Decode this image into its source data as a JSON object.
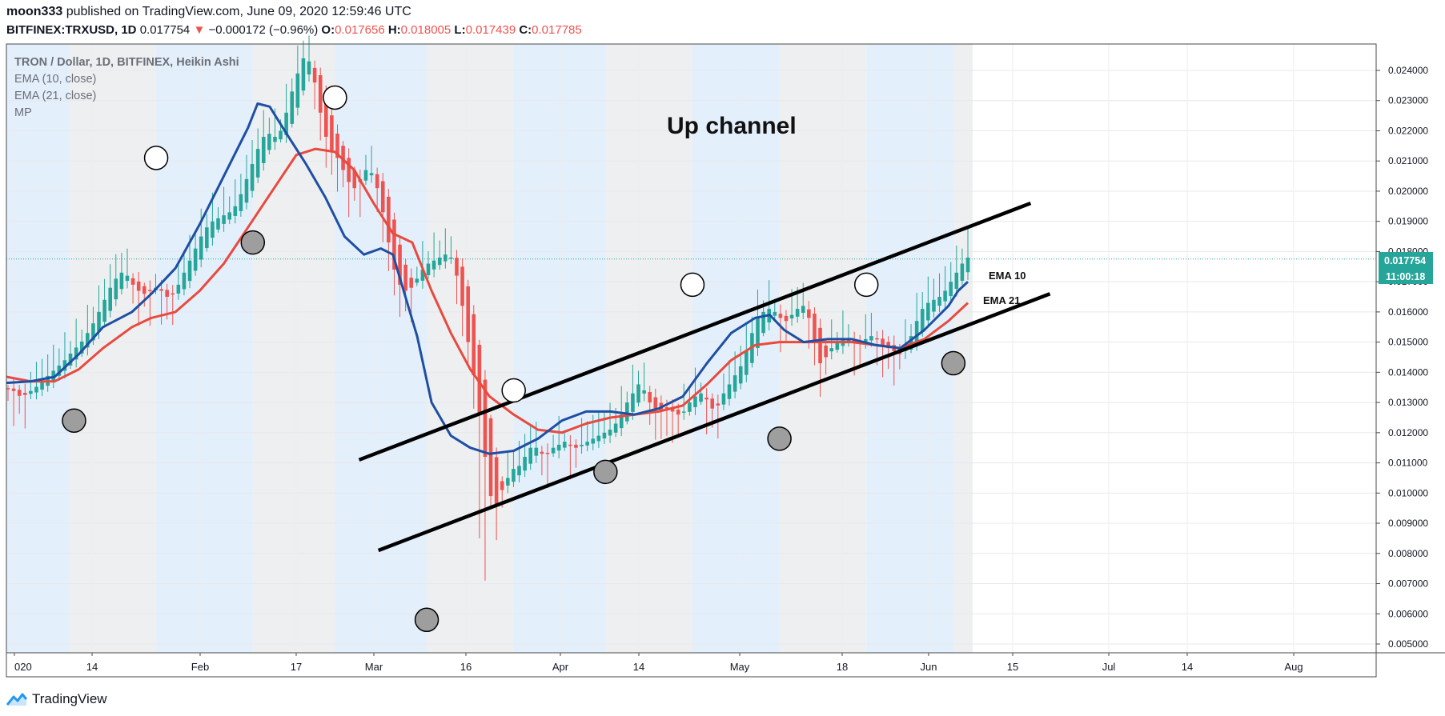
{
  "header": {
    "author": "moon333",
    "published_text": "published on TradingView.com, June 09, 2020 12:59:46 UTC",
    "symbol": "BITFINEX:TRXUSD, 1D",
    "last": "0.017754",
    "arrow": "▼",
    "change": "−0.000172 (−0.96%)",
    "o_label": "O:",
    "o_value": "0.017656",
    "h_label": "H:",
    "h_value": "0.018005",
    "l_label": "L:",
    "l_value": "0.017439",
    "c_label": "C:",
    "c_value": "0.017785"
  },
  "legend": {
    "title": "TRON / Dollar, 1D, BITFINEX, Heikin Ashi",
    "ema10": "EMA (10, close)",
    "ema21": "EMA (21, close)",
    "mp": "MP"
  },
  "annotations": {
    "channel_title": "Up channel",
    "ema10_label": "EMA 10",
    "ema21_label": "EMA 21"
  },
  "price_tag": {
    "value": "0.017754",
    "countdown": "11:00:18"
  },
  "brand": {
    "name": "TradingView"
  },
  "colors": {
    "up": "#26a69a",
    "down": "#ef5350",
    "ema10": "#1e4fa3",
    "ema21": "#e84a3f",
    "shade_blue": "#e3effb",
    "shade_gray": "#eeeff0",
    "accent": "#2196f3"
  },
  "chart_data": {
    "type": "candlestick",
    "style": "Heikin Ashi",
    "yticks": [
      "0.024000",
      "0.023000",
      "0.022000",
      "0.021000",
      "0.020000",
      "0.019000",
      "0.018000",
      "0.017000",
      "0.016000",
      "0.015000",
      "0.014000",
      "0.013000",
      "0.012000",
      "0.011000",
      "0.010000",
      "0.009000",
      "0.008000",
      "0.007000",
      "0.006000",
      "0.005000"
    ],
    "xticks": [
      "020",
      "14",
      "Feb",
      "17",
      "Mar",
      "16",
      "Apr",
      "14",
      "May",
      "18",
      "Jun",
      "15",
      "Jul",
      "14",
      "Aug"
    ],
    "ylim": [
      0.0048,
      0.0249
    ],
    "closes": [
      0.01345,
      0.01338,
      0.01322,
      0.01325,
      0.01338,
      0.01352,
      0.01368,
      0.01388,
      0.01405,
      0.01422,
      0.0144,
      0.01462,
      0.01482,
      0.01502,
      0.0153,
      0.01562,
      0.016,
      0.0164,
      0.0168,
      0.0171,
      0.0173,
      0.0172,
      0.0169,
      0.0167,
      0.0166,
      0.0167,
      0.0168,
      0.0167,
      0.0165,
      0.0166,
      0.0169,
      0.0173,
      0.0177,
      0.0181,
      0.0185,
      0.0188,
      0.019,
      0.0191,
      0.0192,
      0.0193,
      0.0195,
      0.0199,
      0.0204,
      0.0209,
      0.0214,
      0.0218,
      0.0219,
      0.0218,
      0.022,
      0.0226,
      0.0233,
      0.0239,
      0.0244,
      0.0243,
      0.0236,
      0.0226,
      0.0218,
      0.0213,
      0.0211,
      0.0207,
      0.0203,
      0.0201,
      0.0203,
      0.0207,
      0.0206,
      0.0201,
      0.0193,
      0.0183,
      0.0174,
      0.0169,
      0.0167,
      0.0168,
      0.0171,
      0.0174,
      0.0176,
      0.0177,
      0.0178,
      0.0179,
      0.0178,
      0.0172,
      0.0162,
      0.015,
      0.0139,
      0.0126,
      0.0112,
      0.0099,
      0.0096,
      0.0101,
      0.0105,
      0.0108,
      0.0109,
      0.0112,
      0.0115,
      0.0115,
      0.0113,
      0.0113,
      0.0115,
      0.0116,
      0.0117,
      0.0116,
      0.0115,
      0.0116,
      0.0117,
      0.0118,
      0.0119,
      0.012,
      0.0121,
      0.0123,
      0.0126,
      0.013,
      0.0133,
      0.0136,
      0.0134,
      0.013,
      0.0128,
      0.0127,
      0.0128,
      0.0127,
      0.0126,
      0.0127,
      0.013,
      0.0132,
      0.0133,
      0.0131,
      0.0128,
      0.0129,
      0.0133,
      0.0136,
      0.0139,
      0.0142,
      0.0147,
      0.0153,
      0.0158,
      0.016,
      0.0161,
      0.016,
      0.0158,
      0.0157,
      0.0159,
      0.0161,
      0.0162,
      0.0158,
      0.015,
      0.0143,
      0.0145,
      0.0148,
      0.015,
      0.0151,
      0.0151,
      0.015,
      0.015,
      0.0151,
      0.0152,
      0.0151,
      0.0149,
      0.0148,
      0.0147,
      0.0146,
      0.0148,
      0.0152,
      0.0157,
      0.0161,
      0.0163,
      0.0164,
      0.0165,
      0.0167,
      0.017,
      0.0173,
      0.0176,
      0.0178
    ],
    "ema10": [
      [
        0.0,
        0.01365
      ],
      [
        0.05,
        0.0137
      ],
      [
        0.1,
        0.01385
      ],
      [
        0.15,
        0.0146
      ],
      [
        0.2,
        0.0155
      ],
      [
        0.26,
        0.016
      ],
      [
        0.3,
        0.0166
      ],
      [
        0.35,
        0.01745
      ],
      [
        0.4,
        0.0189
      ],
      [
        0.45,
        0.0205
      ],
      [
        0.5,
        0.0221
      ],
      [
        0.52,
        0.0229
      ],
      [
        0.545,
        0.0228
      ],
      [
        0.58,
        0.0219
      ],
      [
        0.62,
        0.0209
      ],
      [
        0.66,
        0.0198
      ],
      [
        0.7,
        0.0185
      ],
      [
        0.74,
        0.0179
      ],
      [
        0.775,
        0.0181
      ],
      [
        0.8,
        0.0179
      ],
      [
        0.85,
        0.0152
      ],
      [
        0.88,
        0.013
      ],
      [
        0.92,
        0.0119
      ],
      [
        0.96,
        0.0115
      ],
      [
        1.0,
        0.0113
      ],
      [
        1.05,
        0.0114
      ],
      [
        1.1,
        0.0118
      ],
      [
        1.15,
        0.0124
      ],
      [
        1.2,
        0.0127
      ],
      [
        1.25,
        0.0127
      ],
      [
        1.3,
        0.0126
      ],
      [
        1.35,
        0.0128
      ],
      [
        1.4,
        0.0132
      ],
      [
        1.45,
        0.0143
      ],
      [
        1.5,
        0.0153
      ],
      [
        1.55,
        0.0158
      ],
      [
        1.58,
        0.0159
      ],
      [
        1.61,
        0.0154
      ],
      [
        1.65,
        0.015
      ],
      [
        1.7,
        0.0151
      ],
      [
        1.75,
        0.0151
      ],
      [
        1.8,
        0.0149
      ],
      [
        1.85,
        0.0148
      ],
      [
        1.9,
        0.0154
      ],
      [
        1.95,
        0.0162
      ],
      [
        1.97,
        0.0167
      ],
      [
        1.99,
        0.017
      ]
    ],
    "ema21": [
      [
        0.0,
        0.01385
      ],
      [
        0.05,
        0.0137
      ],
      [
        0.1,
        0.0137
      ],
      [
        0.15,
        0.0141
      ],
      [
        0.2,
        0.0148
      ],
      [
        0.26,
        0.0155
      ],
      [
        0.3,
        0.0158
      ],
      [
        0.35,
        0.016
      ],
      [
        0.4,
        0.0167
      ],
      [
        0.45,
        0.0176
      ],
      [
        0.5,
        0.0188
      ],
      [
        0.55,
        0.02
      ],
      [
        0.6,
        0.0212
      ],
      [
        0.64,
        0.0214
      ],
      [
        0.68,
        0.0213
      ],
      [
        0.72,
        0.0207
      ],
      [
        0.76,
        0.0196
      ],
      [
        0.8,
        0.0186
      ],
      [
        0.84,
        0.0183
      ],
      [
        0.88,
        0.0167
      ],
      [
        0.92,
        0.0153
      ],
      [
        0.96,
        0.0141
      ],
      [
        1.0,
        0.0132
      ],
      [
        1.05,
        0.0126
      ],
      [
        1.1,
        0.0121
      ],
      [
        1.15,
        0.012
      ],
      [
        1.2,
        0.0123
      ],
      [
        1.25,
        0.0125
      ],
      [
        1.3,
        0.0126
      ],
      [
        1.35,
        0.0127
      ],
      [
        1.4,
        0.0129
      ],
      [
        1.45,
        0.0136
      ],
      [
        1.5,
        0.0144
      ],
      [
        1.55,
        0.0149
      ],
      [
        1.6,
        0.015
      ],
      [
        1.65,
        0.015
      ],
      [
        1.7,
        0.015
      ],
      [
        1.75,
        0.015
      ],
      [
        1.8,
        0.0149
      ],
      [
        1.85,
        0.0148
      ],
      [
        1.9,
        0.0151
      ],
      [
        1.95,
        0.0157
      ],
      [
        1.99,
        0.0163
      ]
    ],
    "channel_upper": [
      [
        0.73,
        0.0111
      ],
      [
        2.12,
        0.0196
      ]
    ],
    "channel_lower": [
      [
        0.77,
        0.0081
      ],
      [
        2.16,
        0.0166
      ]
    ],
    "swing_highs": [
      [
        0.31,
        0.0211
      ],
      [
        0.68,
        0.0231
      ],
      [
        1.05,
        0.0134
      ],
      [
        1.42,
        0.0169
      ],
      [
        1.78,
        0.0169
      ]
    ],
    "swing_lows": [
      [
        0.14,
        0.0124
      ],
      [
        0.51,
        0.0183
      ],
      [
        0.87,
        0.0058
      ],
      [
        1.24,
        0.0107
      ],
      [
        1.6,
        0.0118
      ],
      [
        1.96,
        0.0143
      ]
    ],
    "shading": [
      [
        "blue",
        0.0,
        0.13
      ],
      [
        "gray",
        0.13,
        0.31
      ],
      [
        "blue",
        0.31,
        0.51
      ],
      [
        "gray",
        0.51,
        0.68
      ],
      [
        "blue",
        0.68,
        0.87
      ],
      [
        "gray",
        0.87,
        1.05
      ],
      [
        "blue",
        1.05,
        1.24
      ],
      [
        "gray",
        1.24,
        1.42
      ],
      [
        "blue",
        1.42,
        1.6
      ],
      [
        "gray",
        1.6,
        1.78
      ],
      [
        "blue",
        1.78,
        1.96
      ],
      [
        "gray",
        1.96,
        2.0
      ]
    ]
  }
}
